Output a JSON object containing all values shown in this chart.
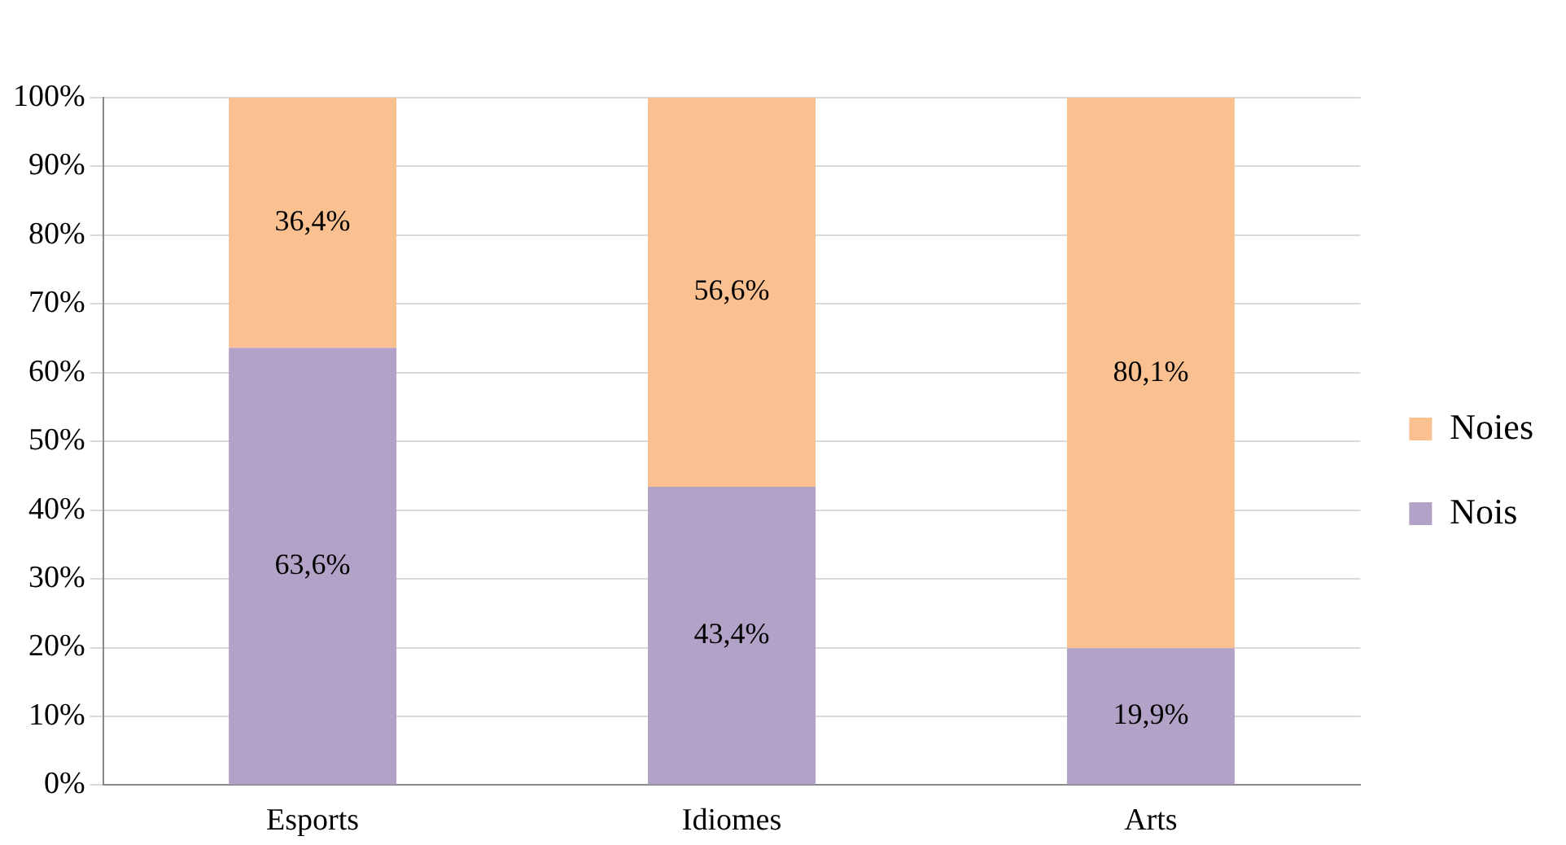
{
  "chart_data": {
    "type": "bar",
    "stacked": true,
    "categories": [
      "Esports",
      "Idiomes",
      "Arts"
    ],
    "series": [
      {
        "name": "Nois",
        "color": "#b3a2c7",
        "values": [
          63.6,
          43.4,
          19.9
        ],
        "value_labels": [
          "63,6%",
          "43,4%",
          "19,9%"
        ]
      },
      {
        "name": "Noies",
        "color": "#fac090",
        "values": [
          36.4,
          56.6,
          80.1
        ],
        "value_labels": [
          "36,4%",
          "56,6%",
          "80,1%"
        ]
      }
    ],
    "ylim": [
      0,
      100
    ],
    "yticks": [
      {
        "value": 0,
        "label": "0%"
      },
      {
        "value": 10,
        "label": "10%"
      },
      {
        "value": 20,
        "label": "20%"
      },
      {
        "value": 30,
        "label": "30%"
      },
      {
        "value": 40,
        "label": "40%"
      },
      {
        "value": 50,
        "label": "50%"
      },
      {
        "value": 60,
        "label": "60%"
      },
      {
        "value": 70,
        "label": "70%"
      },
      {
        "value": 80,
        "label": "80%"
      },
      {
        "value": 90,
        "label": "90%"
      },
      {
        "value": 100,
        "label": "100%"
      }
    ],
    "grid": "y",
    "legend": "right"
  }
}
